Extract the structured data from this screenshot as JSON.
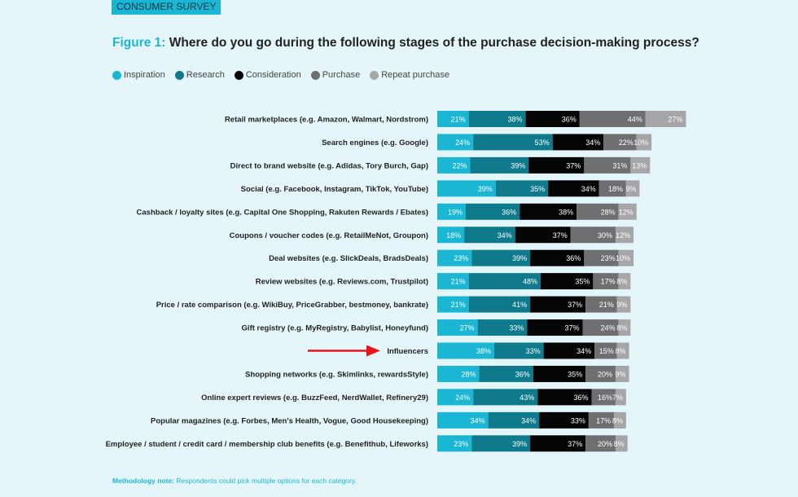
{
  "header": {
    "tag": "CONSUMER SURVEY",
    "figure_label": "Figure 1:",
    "title": "Where do you go during the following stages of the purchase decision-making process?"
  },
  "note": {
    "label": "Methodology note:",
    "text": "Respondents could pick multiple options for each category."
  },
  "chart_data": {
    "type": "bar",
    "orientation": "horizontal",
    "stacked": true,
    "legend_placement": "top-left",
    "grid": false,
    "categories": [
      "Retail marketplaces (e.g. Amazon, Walmart, Nordstrom)",
      "Search engines (e.g. Google)",
      "Direct to brand website (e.g. Adidas, Tory Burch, Gap)",
      "Social (e.g. Facebook, Instagram, TikTok, YouTube)",
      "Cashback / loyalty sites (e.g. Capital One Shopping, Rakuten Rewards / Ebates)",
      "Coupons / voucher codes (e.g. RetailMeNot, Groupon)",
      "Deal websites (e.g. SlickDeals, BradsDeals)",
      "Review websites (e.g. Reviews.com, Trustpilot)",
      "Price / rate comparison (e.g. WikiBuy, PriceGrabber, bestmoney, bankrate)",
      "Gift registry (e.g. MyRegistry, Babylist, Honeyfund)",
      "Influencers",
      "Shopping networks (e.g. Skimlinks, rewardsStyle)",
      "Online expert reviews (e.g. BuzzFeed, NerdWallet, Refinery29)",
      "Popular magazines (e.g. Forbes, Men's Health, Vogue, Good Housekeeping)",
      "Employee / student / credit card / membership club benefits (e.g. Benefithub, Lifeworks)"
    ],
    "series": [
      {
        "name": "Inspiration",
        "color": "#1bb6d3",
        "values": [
          21,
          24,
          22,
          39,
          19,
          18,
          23,
          21,
          21,
          27,
          38,
          28,
          24,
          34,
          23
        ]
      },
      {
        "name": "Research",
        "color": "#0e7a8c",
        "values": [
          38,
          53,
          39,
          35,
          36,
          34,
          39,
          48,
          41,
          33,
          33,
          36,
          43,
          34,
          39
        ]
      },
      {
        "name": "Consideration",
        "color": "#050505",
        "values": [
          36,
          34,
          37,
          34,
          38,
          37,
          36,
          35,
          37,
          37,
          34,
          35,
          36,
          33,
          37
        ]
      },
      {
        "name": "Purchase",
        "color": "#6f6f72",
        "values": [
          44,
          22,
          31,
          18,
          28,
          30,
          23,
          17,
          21,
          24,
          15,
          20,
          16,
          17,
          20
        ]
      },
      {
        "name": "Repeat purchase",
        "color": "#a6a6a8",
        "values": [
          27,
          10,
          13,
          9,
          12,
          12,
          10,
          8,
          9,
          8,
          8,
          9,
          7,
          8,
          8
        ]
      }
    ],
    "unit": "%",
    "annotation": {
      "type": "arrow",
      "target": "Influencers",
      "color": "#e8141c"
    }
  }
}
